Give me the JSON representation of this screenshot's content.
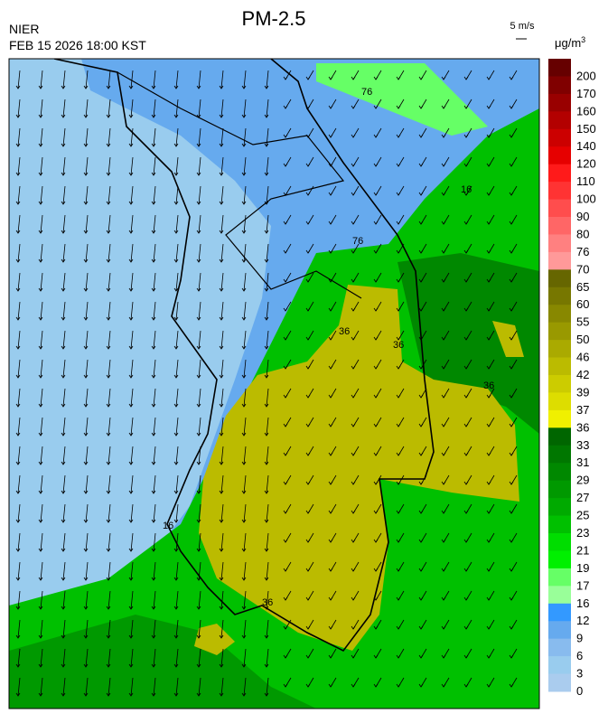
{
  "header": {
    "title": "PM-2.5",
    "agency": "NIER",
    "timestamp": "FEB 15 2026 18:00 KST",
    "wind_scale": "5 m/s",
    "unit": "μg/m",
    "unit_sup": "3"
  },
  "colorbar": {
    "labels": [
      "200",
      "170",
      "160",
      "150",
      "140",
      "120",
      "110",
      "100",
      "90",
      "80",
      "76",
      "70",
      "65",
      "60",
      "55",
      "50",
      "46",
      "42",
      "39",
      "37",
      "36",
      "33",
      "31",
      "29",
      "27",
      "25",
      "23",
      "21",
      "19",
      "17",
      "16",
      "12",
      "9",
      "6",
      "3",
      "0"
    ],
    "colors": [
      "#660000",
      "#800000",
      "#990000",
      "#b30000",
      "#cc0000",
      "#e60000",
      "#ff1a1a",
      "#ff3333",
      "#ff4d4d",
      "#ff6666",
      "#ff8080",
      "#ff9999",
      "#666600",
      "#777700",
      "#888800",
      "#999900",
      "#aaaa00",
      "#bbbb00",
      "#cccc00",
      "#dddd00",
      "#f0f000",
      "#006600",
      "#007700",
      "#008800",
      "#009900",
      "#00aa00",
      "#00c000",
      "#00dd00",
      "#00f000",
      "#66ff66",
      "#99ff99",
      "#3399ff",
      "#66aaee",
      "#88bbee",
      "#99ccee",
      "#aaccee"
    ]
  },
  "contour_labels": [
    "76",
    "76",
    "36",
    "36",
    "36",
    "36",
    "16",
    "16"
  ]
}
